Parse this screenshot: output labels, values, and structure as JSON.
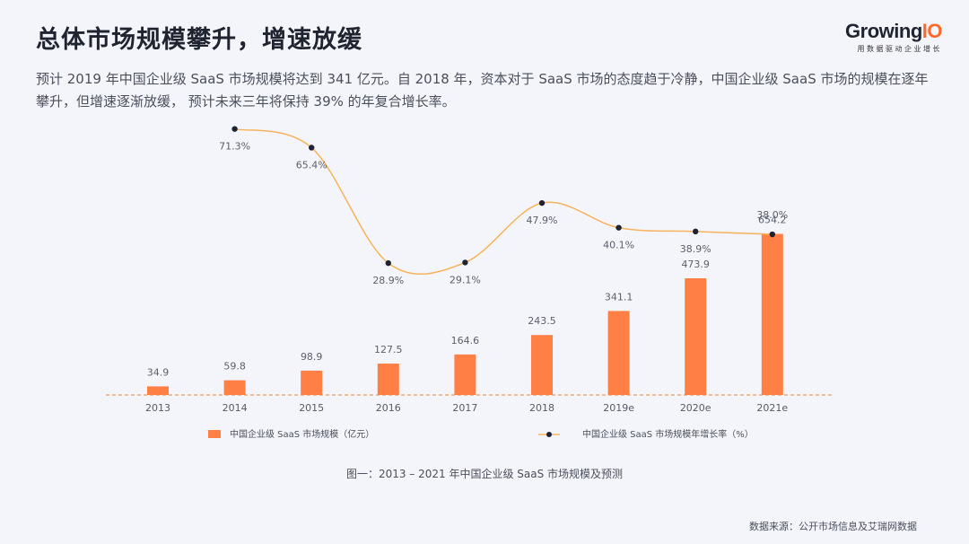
{
  "header": {
    "title": "总体市场规模攀升，增速放缓",
    "logo_name_main": "Growing",
    "logo_name_accent": "IO",
    "logo_tagline": "用数据驱动企业增长"
  },
  "lead_text": "预计 2019 年中国企业级 SaaS 市场规模将达到 341 亿元。自 2018 年，资本对于 SaaS 市场的态度趋于冷静，中国企业级 SaaS 市场的规模在逐年攀升，但增速逐渐放缓， 预计未来三年将保持 39% 的年复合增长率。",
  "chart_data": {
    "type": "bar",
    "categories": [
      "2013",
      "2014",
      "2015",
      "2016",
      "2017",
      "2018",
      "2019e",
      "2020e",
      "2021e"
    ],
    "series": [
      {
        "name": "中国企业级 SaaS 市场规模（亿元）",
        "type": "bar",
        "values": [
          34.9,
          59.8,
          98.9,
          127.5,
          164.6,
          243.5,
          341.1,
          473.9,
          654.2
        ],
        "labels": [
          "34.9",
          "59.8",
          "98.9",
          "127.5",
          "164.6",
          "243.5",
          "341.1",
          "473.9",
          "654.2"
        ],
        "color": "#ff7f45"
      },
      {
        "name": "中国企业级 SaaS 市场规模年增长率（%）",
        "type": "line",
        "values": [
          null,
          71.3,
          65.4,
          28.9,
          29.1,
          47.9,
          40.1,
          38.9,
          38.0
        ],
        "labels": [
          "",
          "71.3%",
          "65.4%",
          "28.9%",
          "29.1%",
          "47.9%",
          "40.1%",
          "38.9%",
          "38.0%"
        ],
        "line_color": "#f7b35b",
        "marker_color": "#1e2233"
      }
    ],
    "ylim": [
      0,
      700
    ],
    "y2lim": [
      0,
      80
    ],
    "legend_position": "bottom",
    "caption": "图一：2013 – 2021 年中国企业级 SaaS 市场规模及预测"
  },
  "source_text": "数据来源：公开市场信息及艾瑞网数据"
}
